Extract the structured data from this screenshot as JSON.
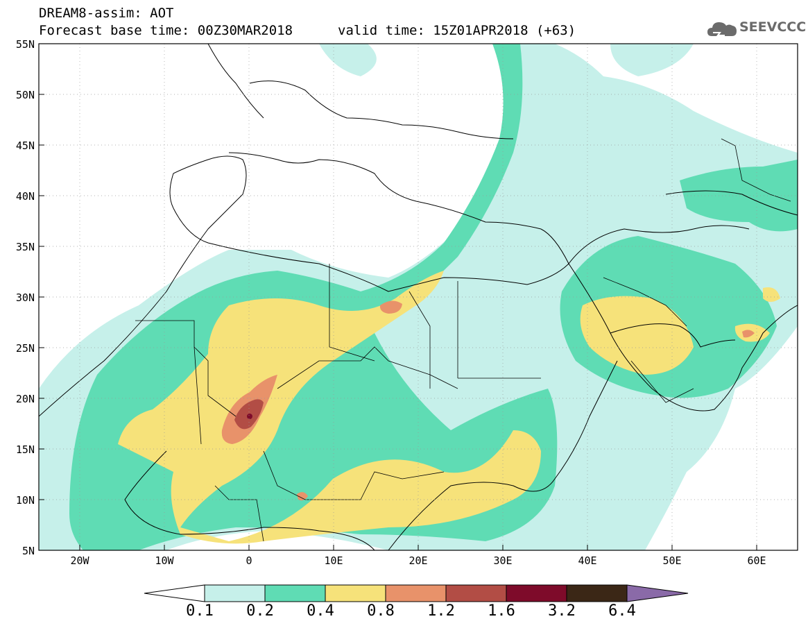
{
  "header": {
    "line1": "DREAM8-assim: AOT",
    "line2": "Forecast base time: 00Z30MAR2018",
    "valid": "valid time: 15Z01APR2018 (+63)"
  },
  "logo": {
    "text": "SEEVCCC",
    "icon": "cloud-icon"
  },
  "map_axes": {
    "lat_labels": [
      "55N",
      "50N",
      "45N",
      "40N",
      "35N",
      "30N",
      "25N",
      "20N",
      "15N",
      "10N",
      "5N"
    ],
    "lon_labels": [
      "20W",
      "10W",
      "0",
      "10E",
      "20E",
      "30E",
      "40E",
      "50E",
      "60E"
    ],
    "lon_range": [
      -25,
      65
    ],
    "lat_range": [
      5,
      55
    ],
    "grid": "dotted"
  },
  "legend": {
    "levels": [
      "0.1",
      "0.2",
      "0.4",
      "0.8",
      "1.2",
      "1.6",
      "3.2",
      "6.4"
    ],
    "colors": [
      "#c6f0ea",
      "#5fdcb4",
      "#f6e27a",
      "#e8926a",
      "#b24d45",
      "#7e0b2a",
      "#3b2716",
      "#8a6aa8"
    ]
  }
}
